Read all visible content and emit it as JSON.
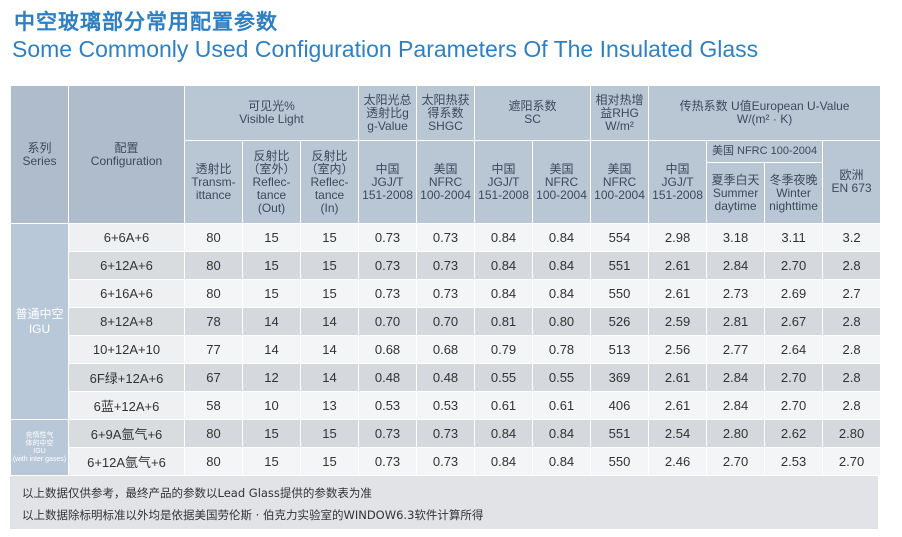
{
  "title_cn": "中空玻璃部分常用配置参数",
  "title_en": "Some Commonly Used Configuration Parameters Of The Insulated Glass",
  "headers": {
    "series": [
      "系列",
      "Series"
    ],
    "config": [
      "配置",
      "Configuration"
    ],
    "visible_light": [
      "可见光%",
      "Visible Light"
    ],
    "solar_total": [
      "太阳光总",
      "透射比g",
      "g-Value"
    ],
    "solar_heat": [
      "太阳热获",
      "得系数",
      "SHGC"
    ],
    "shading": [
      "遮阳系数",
      "SC"
    ],
    "rhg": [
      "相对热增",
      "益RHG",
      "W/m²"
    ],
    "u_value": [
      "传热系数 U值European U-Value",
      "W/(m² · K)"
    ],
    "transmittance": [
      "透射比",
      "Transm-",
      "ittance"
    ],
    "reflect_out": [
      "反射比",
      "（室外）",
      "Reflec-",
      "tance",
      "(Out)"
    ],
    "reflect_in": [
      "反射比",
      "（室内）",
      "Reflec-",
      "tance",
      "(In)"
    ],
    "cn_std": [
      "中国",
      "JGJ/T",
      "151-2008"
    ],
    "us_std": [
      "美国",
      "NFRC",
      "100-2004"
    ],
    "us_nfrc_span": "美国 NFRC 100-2004",
    "summer": [
      "夏季白天",
      "Summer",
      "daytime"
    ],
    "winter": [
      "冬季夜晚",
      "Winter",
      "nighttime"
    ],
    "eu": [
      "欧洲",
      "EN 673"
    ]
  },
  "series_groups": [
    {
      "lines": [
        "普通中空",
        "IGU"
      ],
      "rows": 7
    },
    {
      "lines": [
        "充惰性气",
        "体的中空",
        "IGU",
        "(with inter gases)"
      ],
      "rows": 2
    }
  ],
  "rows": [
    {
      "config": "6+6A+6",
      "values": [
        "80",
        "15",
        "15",
        "0.73",
        "0.73",
        "0.84",
        "0.84",
        "554",
        "2.98",
        "3.18",
        "3.11",
        "3.2"
      ]
    },
    {
      "config": "6+12A+6",
      "values": [
        "80",
        "15",
        "15",
        "0.73",
        "0.73",
        "0.84",
        "0.84",
        "551",
        "2.61",
        "2.84",
        "2.70",
        "2.8"
      ]
    },
    {
      "config": "6+16A+6",
      "values": [
        "80",
        "15",
        "15",
        "0.73",
        "0.73",
        "0.84",
        "0.84",
        "550",
        "2.61",
        "2.73",
        "2.69",
        "2.7"
      ]
    },
    {
      "config": "8+12A+8",
      "values": [
        "78",
        "14",
        "14",
        "0.70",
        "0.70",
        "0.81",
        "0.80",
        "526",
        "2.59",
        "2.81",
        "2.67",
        "2.8"
      ]
    },
    {
      "config": "10+12A+10",
      "values": [
        "77",
        "14",
        "14",
        "0.68",
        "0.68",
        "0.79",
        "0.78",
        "513",
        "2.56",
        "2.77",
        "2.64",
        "2.8"
      ]
    },
    {
      "config": "6F绿+12A+6",
      "values": [
        "67",
        "12",
        "14",
        "0.48",
        "0.48",
        "0.55",
        "0.55",
        "369",
        "2.61",
        "2.84",
        "2.70",
        "2.8"
      ]
    },
    {
      "config": "6蓝+12A+6",
      "values": [
        "58",
        "10",
        "13",
        "0.53",
        "0.53",
        "0.61",
        "0.61",
        "406",
        "2.61",
        "2.84",
        "2.70",
        "2.8"
      ]
    },
    {
      "config": "6+9A氩气+6",
      "values": [
        "80",
        "15",
        "15",
        "0.73",
        "0.73",
        "0.84",
        "0.84",
        "551",
        "2.54",
        "2.80",
        "2.62",
        "2.80"
      ]
    },
    {
      "config": "6+12A氩气+6",
      "values": [
        "80",
        "15",
        "15",
        "0.73",
        "0.73",
        "0.84",
        "0.84",
        "550",
        "2.46",
        "2.70",
        "2.53",
        "2.70"
      ]
    }
  ],
  "notes": [
    "以上数据仅供参考，最终产品的参数以Lead Glass提供的参数表为准",
    "以上数据除标明标准以外均是依据美国劳伦斯 · 伯克力实验室的WINDOW6.3软件计算所得"
  ]
}
